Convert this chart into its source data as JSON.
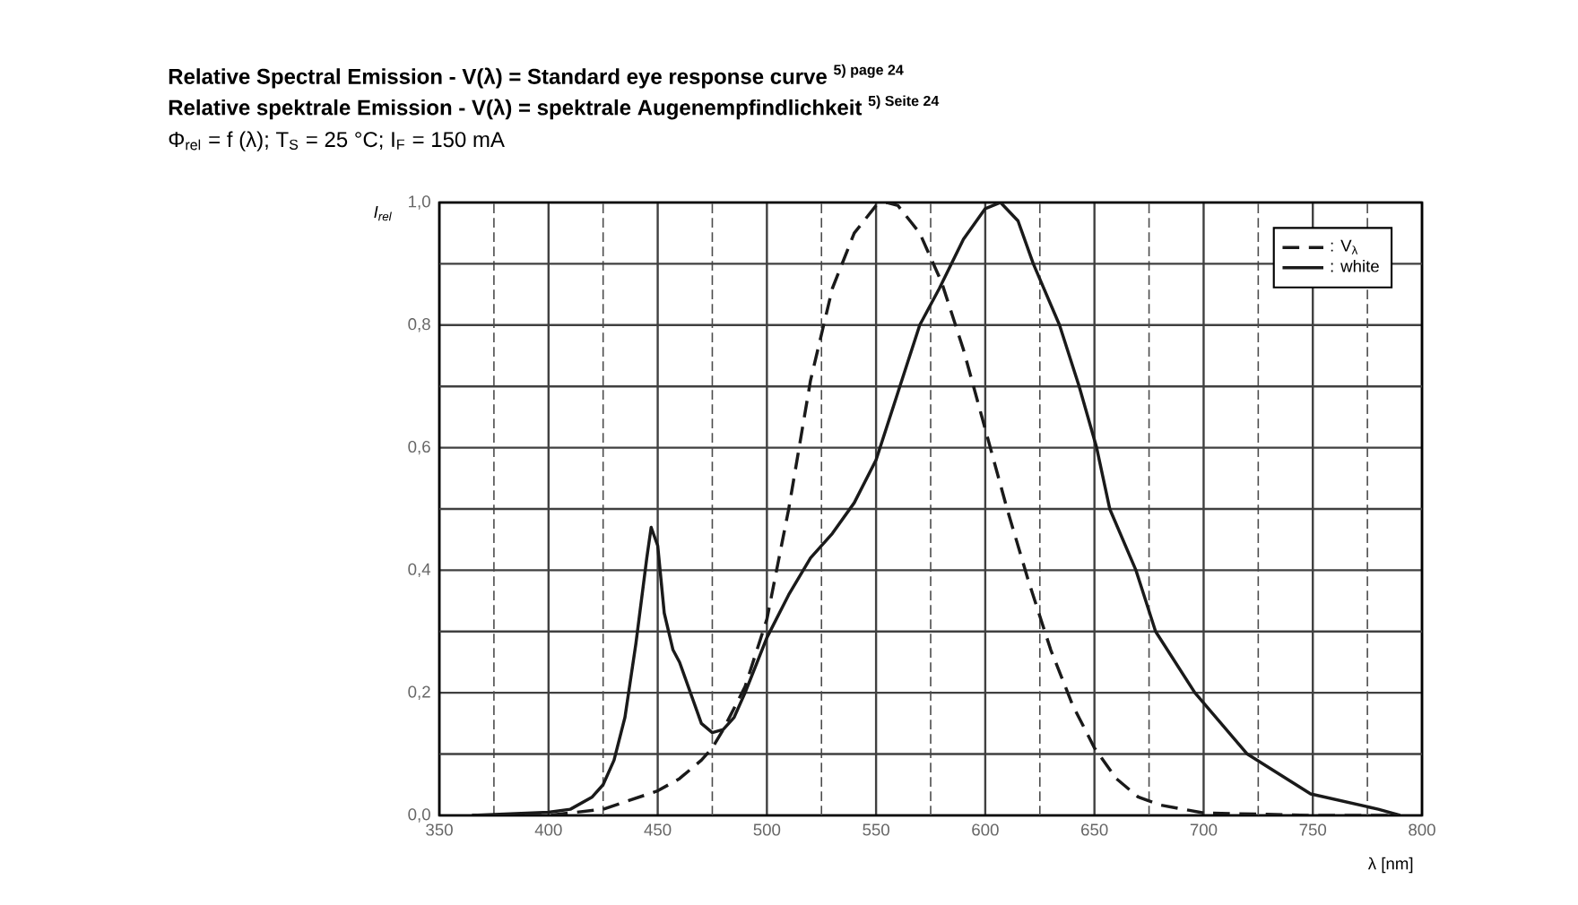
{
  "chart_data": {
    "type": "line",
    "title": "Relative Spectral Emission - V(λ) = Standard eye response curve $^{5) page 24}$",
    "subtitle": "Relative spektrale Emission - V(λ) = spektrale Augenempfindlichkeit $^{5) Seite 24}$",
    "annotations": [
      "Φ$_{rel}$ = f (λ); T$_{S}$ = 25 °C; I$_{F}$ = 150 mA"
    ],
    "xlabel": "λ [nm]",
    "ylabel": "I$_{rel}$",
    "series": [
      {
        "name": ": V$_{λ}$",
        "color": "#1a1a1a",
        "line_style": "dashed",
        "x": [
          365,
          400,
          425,
          450,
          460,
          470,
          475,
          480,
          490,
          500,
          505,
          510,
          520,
          530,
          540,
          550,
          555,
          560,
          570,
          580,
          590,
          600,
          610,
          620,
          630,
          640,
          650,
          660,
          670,
          680,
          700,
          750,
          790
        ],
        "values": [
          0,
          0,
          0.01,
          0.04,
          0.06,
          0.09,
          0.11,
          0.14,
          0.21,
          0.32,
          0.41,
          0.5,
          0.71,
          0.86,
          0.95,
          0.995,
          1.0,
          0.995,
          0.95,
          0.87,
          0.76,
          0.63,
          0.5,
          0.38,
          0.27,
          0.18,
          0.11,
          0.06,
          0.03,
          0.017,
          0.004,
          0,
          0
        ]
      },
      {
        "name": ": white",
        "color": "#1a1a1a",
        "line_style": "solid",
        "x": [
          365,
          400,
          410,
          420,
          425,
          430,
          435,
          440,
          445,
          447,
          450,
          453,
          457,
          460,
          465,
          470,
          475,
          480,
          485,
          490,
          500,
          510,
          520,
          530,
          540,
          550,
          560,
          570,
          579,
          590,
          600,
          607,
          615,
          622,
          634,
          643,
          651,
          657,
          669,
          678,
          696,
          720,
          749,
          780,
          790
        ],
        "values": [
          0,
          0.005,
          0.01,
          0.03,
          0.05,
          0.09,
          0.16,
          0.28,
          0.42,
          0.47,
          0.44,
          0.33,
          0.27,
          0.25,
          0.2,
          0.15,
          0.135,
          0.14,
          0.16,
          0.2,
          0.29,
          0.36,
          0.42,
          0.46,
          0.51,
          0.58,
          0.69,
          0.8,
          0.86,
          0.94,
          0.99,
          1.0,
          0.97,
          0.9,
          0.8,
          0.7,
          0.6,
          0.5,
          0.4,
          0.3,
          0.2,
          0.1,
          0.035,
          0.01,
          0
        ]
      }
    ],
    "xlim": [
      350,
      800
    ],
    "xticks": [
      350,
      {
        "value": 375,
        "label": null
      },
      400,
      {
        "value": 425,
        "label": null
      },
      450,
      {
        "value": 475,
        "label": null
      },
      500,
      {
        "value": 525,
        "label": null
      },
      550,
      {
        "value": 575,
        "label": null
      },
      600,
      {
        "value": 625,
        "label": null
      },
      650,
      {
        "value": 675,
        "label": null
      },
      700,
      {
        "value": 725,
        "label": null
      },
      750,
      {
        "value": 775,
        "label": null
      },
      800
    ],
    "ylim": [
      0,
      1
    ],
    "yticks": [
      {
        "value": 0,
        "label": "0,0"
      },
      {
        "value": 0.1,
        "label": null
      },
      {
        "value": 0.2,
        "label": "0,2"
      },
      {
        "value": 0.3,
        "label": null
      },
      {
        "value": 0.4,
        "label": "0,4"
      },
      {
        "value": 0.5,
        "label": null
      },
      {
        "value": 0.6,
        "label": "0,6"
      },
      {
        "value": 0.7,
        "label": null
      },
      {
        "value": 0.8,
        "label": "0,8"
      },
      {
        "value": 0.9,
        "label": null
      },
      {
        "value": 1.0,
        "label": "1,0"
      }
    ],
    "grid": true,
    "legend": "top right"
  }
}
